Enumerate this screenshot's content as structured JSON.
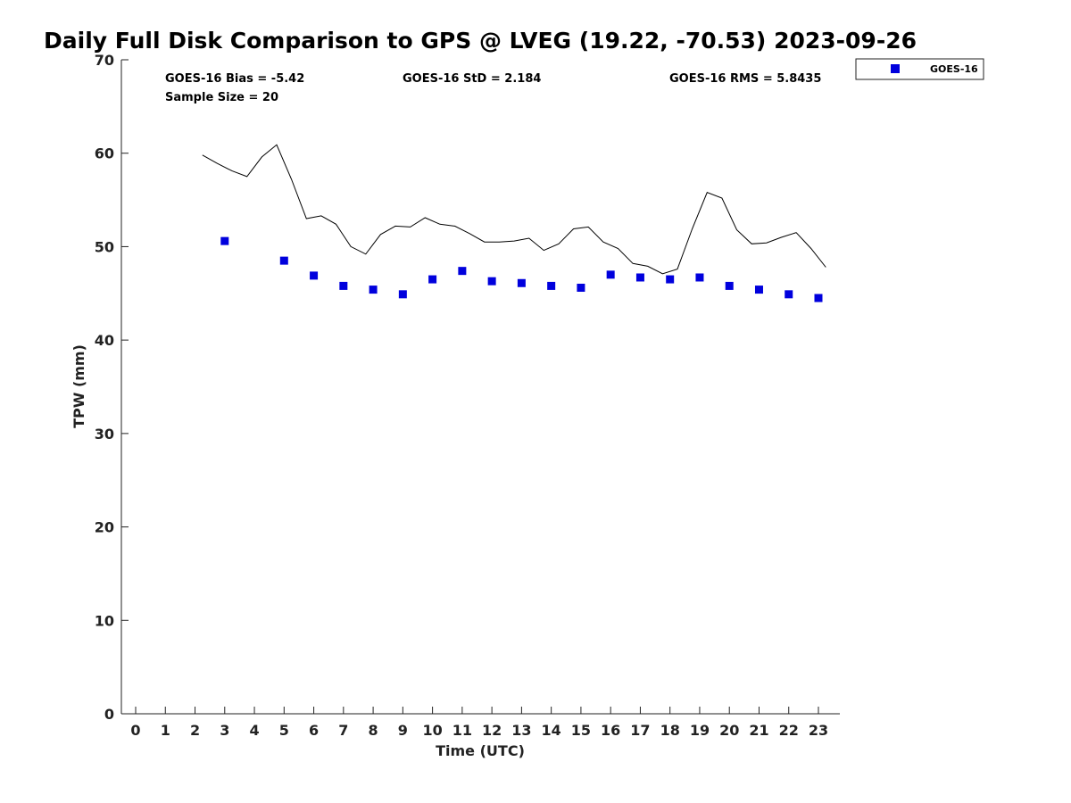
{
  "chart_data": {
    "type": "scatter",
    "title": "Daily Full Disk Comparison to GPS @ LVEG (19.22, -70.53) 2023-09-26",
    "xlabel": "Time (UTC)",
    "ylabel": "TPW (mm)",
    "xlim": [
      -0.5,
      23.9
    ],
    "ylim": [
      0,
      70
    ],
    "x_ticks": [
      "0",
      "1",
      "2",
      "3",
      "4",
      "5",
      "6",
      "7",
      "8",
      "9",
      "10",
      "11",
      "12",
      "13",
      "14",
      "15",
      "16",
      "17",
      "18",
      "19",
      "20",
      "21",
      "22",
      "23"
    ],
    "y_ticks": [
      "0",
      "10",
      "20",
      "30",
      "40",
      "50",
      "60",
      "70"
    ],
    "grid": false,
    "legend_position": "top-right",
    "colors": {
      "goes": "#0000dd",
      "gps": "#000000"
    },
    "stats": {
      "bias": "GOES-16 Bias = -5.42",
      "std": "GOES-16 StD = 2.184",
      "rms": "GOES-16 RMS = 5.8435",
      "sample": "Sample Size = 20"
    },
    "series": [
      {
        "name": "GOES-16",
        "kind": "scatter",
        "x": [
          3,
          5,
          6,
          7,
          8,
          9,
          10,
          11,
          12,
          13,
          14,
          15,
          16,
          17,
          18,
          19,
          20,
          21,
          22,
          23
        ],
        "y": [
          50.6,
          48.5,
          46.9,
          45.8,
          45.4,
          44.9,
          46.5,
          47.4,
          46.3,
          46.1,
          45.8,
          45.6,
          47.0,
          46.7,
          46.5,
          46.7,
          45.8,
          45.4,
          44.9,
          44.5
        ]
      },
      {
        "kind": "line",
        "x": [
          2.25,
          2.75,
          3.25,
          3.75,
          4.25,
          4.75,
          5.25,
          5.75,
          6.25,
          6.75,
          7.25,
          7.75,
          8.25,
          8.75,
          9.25,
          9.75,
          10.25,
          10.75,
          11.25,
          11.75,
          12.25,
          12.75,
          13.25,
          13.75,
          14.25,
          14.75,
          15.25,
          15.75,
          16.25,
          16.75,
          17.25,
          17.75,
          18.25,
          18.75,
          19.25,
          19.75,
          20.25,
          20.75,
          21.25,
          21.75,
          22.25,
          22.75,
          23.25
        ],
        "y": [
          59.8,
          58.9,
          58.1,
          57.5,
          59.6,
          60.9,
          57.2,
          53.0,
          53.3,
          52.4,
          50.0,
          49.2,
          51.3,
          52.2,
          52.1,
          53.1,
          52.4,
          52.2,
          51.4,
          50.5,
          50.5,
          50.6,
          50.9,
          49.6,
          50.3,
          51.9,
          52.1,
          50.5,
          49.8,
          48.2,
          47.9,
          47.1,
          47.6,
          51.9,
          55.8,
          55.2,
          51.8,
          50.3,
          50.4,
          51.0,
          51.5,
          49.8,
          47.8
        ]
      }
    ]
  }
}
